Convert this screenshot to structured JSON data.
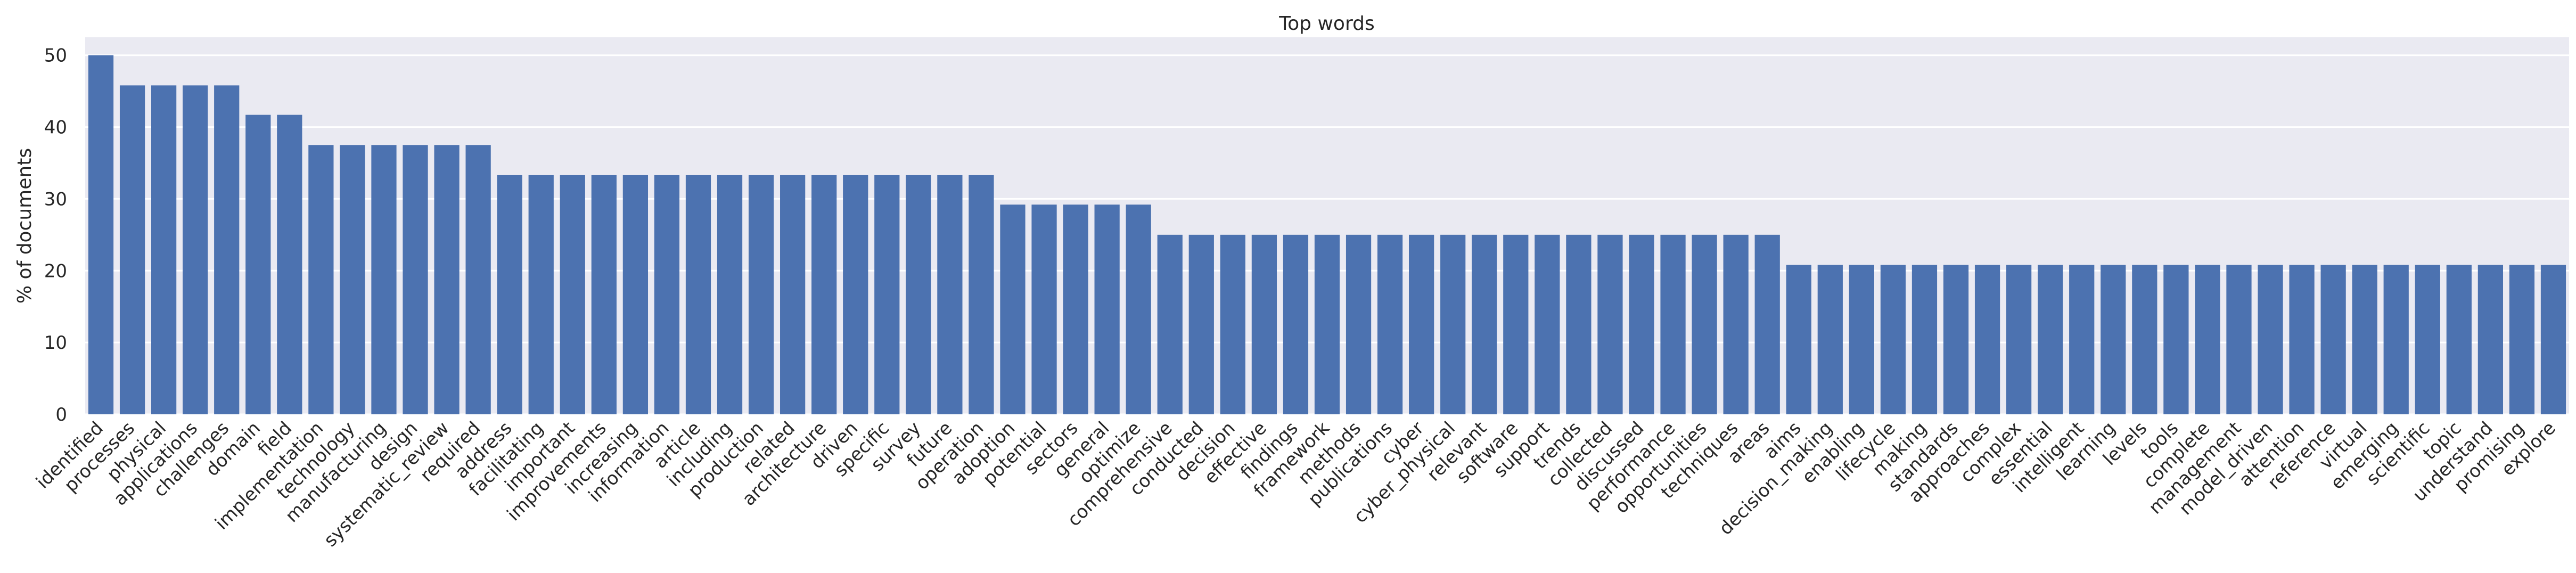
{
  "chart_data": {
    "type": "bar",
    "title": "Top words",
    "xlabel": "",
    "ylabel": "% of documents",
    "ylim": [
      0,
      52.5
    ],
    "yticks": [
      0,
      10,
      20,
      30,
      40,
      50
    ],
    "grid": true,
    "bar_color": "#4c72b0",
    "background_color": "#eaeaf2",
    "categories": [
      "identified",
      "processes",
      "physical",
      "applications",
      "challenges",
      "domain",
      "field",
      "implementation",
      "technology",
      "manufacturing",
      "design",
      "systematic_review",
      "required",
      "address",
      "facilitating",
      "important",
      "improvements",
      "increasing",
      "information",
      "article",
      "including",
      "production",
      "related",
      "architecture",
      "driven",
      "specific",
      "survey",
      "future",
      "operation",
      "adoption",
      "potential",
      "sectors",
      "general",
      "optimize",
      "comprehensive",
      "conducted",
      "decision",
      "effective",
      "findings",
      "framework",
      "methods",
      "publications",
      "cyber",
      "cyber_physical",
      "relevant",
      "software",
      "support",
      "trends",
      "collected",
      "discussed",
      "performance",
      "opportunities",
      "techniques",
      "areas",
      "aims",
      "decision_making",
      "enabling",
      "lifecycle",
      "making",
      "standards",
      "approaches",
      "complex",
      "essential",
      "intelligent",
      "learning",
      "levels",
      "tools",
      "complete",
      "management",
      "model_driven",
      "attention",
      "reference",
      "virtual",
      "emerging",
      "scientific",
      "topic",
      "understand",
      "promising",
      "explore"
    ],
    "values": [
      50.0,
      45.8,
      45.8,
      45.8,
      45.8,
      41.7,
      41.7,
      37.5,
      37.5,
      37.5,
      37.5,
      37.5,
      37.5,
      33.3,
      33.3,
      33.3,
      33.3,
      33.3,
      33.3,
      33.3,
      33.3,
      33.3,
      33.3,
      33.3,
      33.3,
      33.3,
      33.3,
      33.3,
      33.3,
      29.2,
      29.2,
      29.2,
      29.2,
      29.2,
      25.0,
      25.0,
      25.0,
      25.0,
      25.0,
      25.0,
      25.0,
      25.0,
      25.0,
      25.0,
      25.0,
      25.0,
      25.0,
      25.0,
      25.0,
      25.0,
      25.0,
      25.0,
      25.0,
      25.0,
      20.8,
      20.8,
      20.8,
      20.8,
      20.8,
      20.8,
      20.8,
      20.8,
      20.8,
      20.8,
      20.8,
      20.8,
      20.8,
      20.8,
      20.8,
      20.8,
      20.8,
      20.8,
      20.8,
      20.8,
      20.8,
      20.8,
      20.8,
      20.8,
      20.8
    ]
  }
}
